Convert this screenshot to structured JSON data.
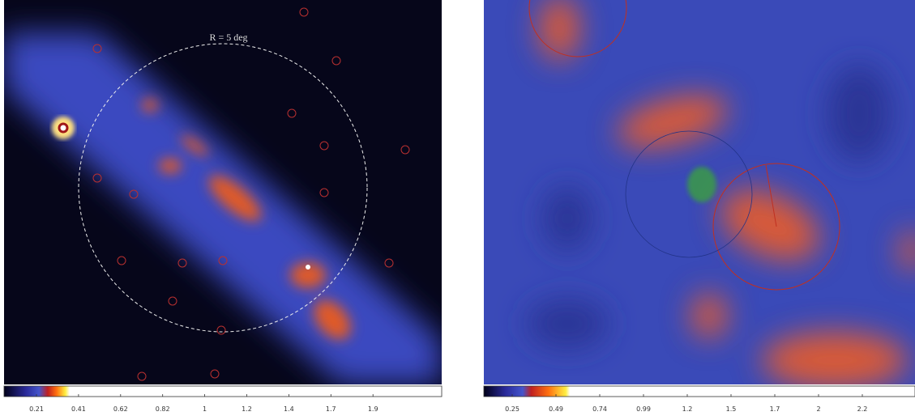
{
  "panels": [
    {
      "label": "R = 5 deg",
      "colorbar_ticks": [
        0.21,
        0.41,
        0.62,
        0.82,
        1,
        1.2,
        1.4,
        1.7,
        1.9
      ]
    },
    {
      "colorbar_ticks": [
        0.25,
        0.49,
        0.74,
        0.99,
        1.2,
        1.5,
        1.7,
        2,
        2.2
      ]
    }
  ]
}
